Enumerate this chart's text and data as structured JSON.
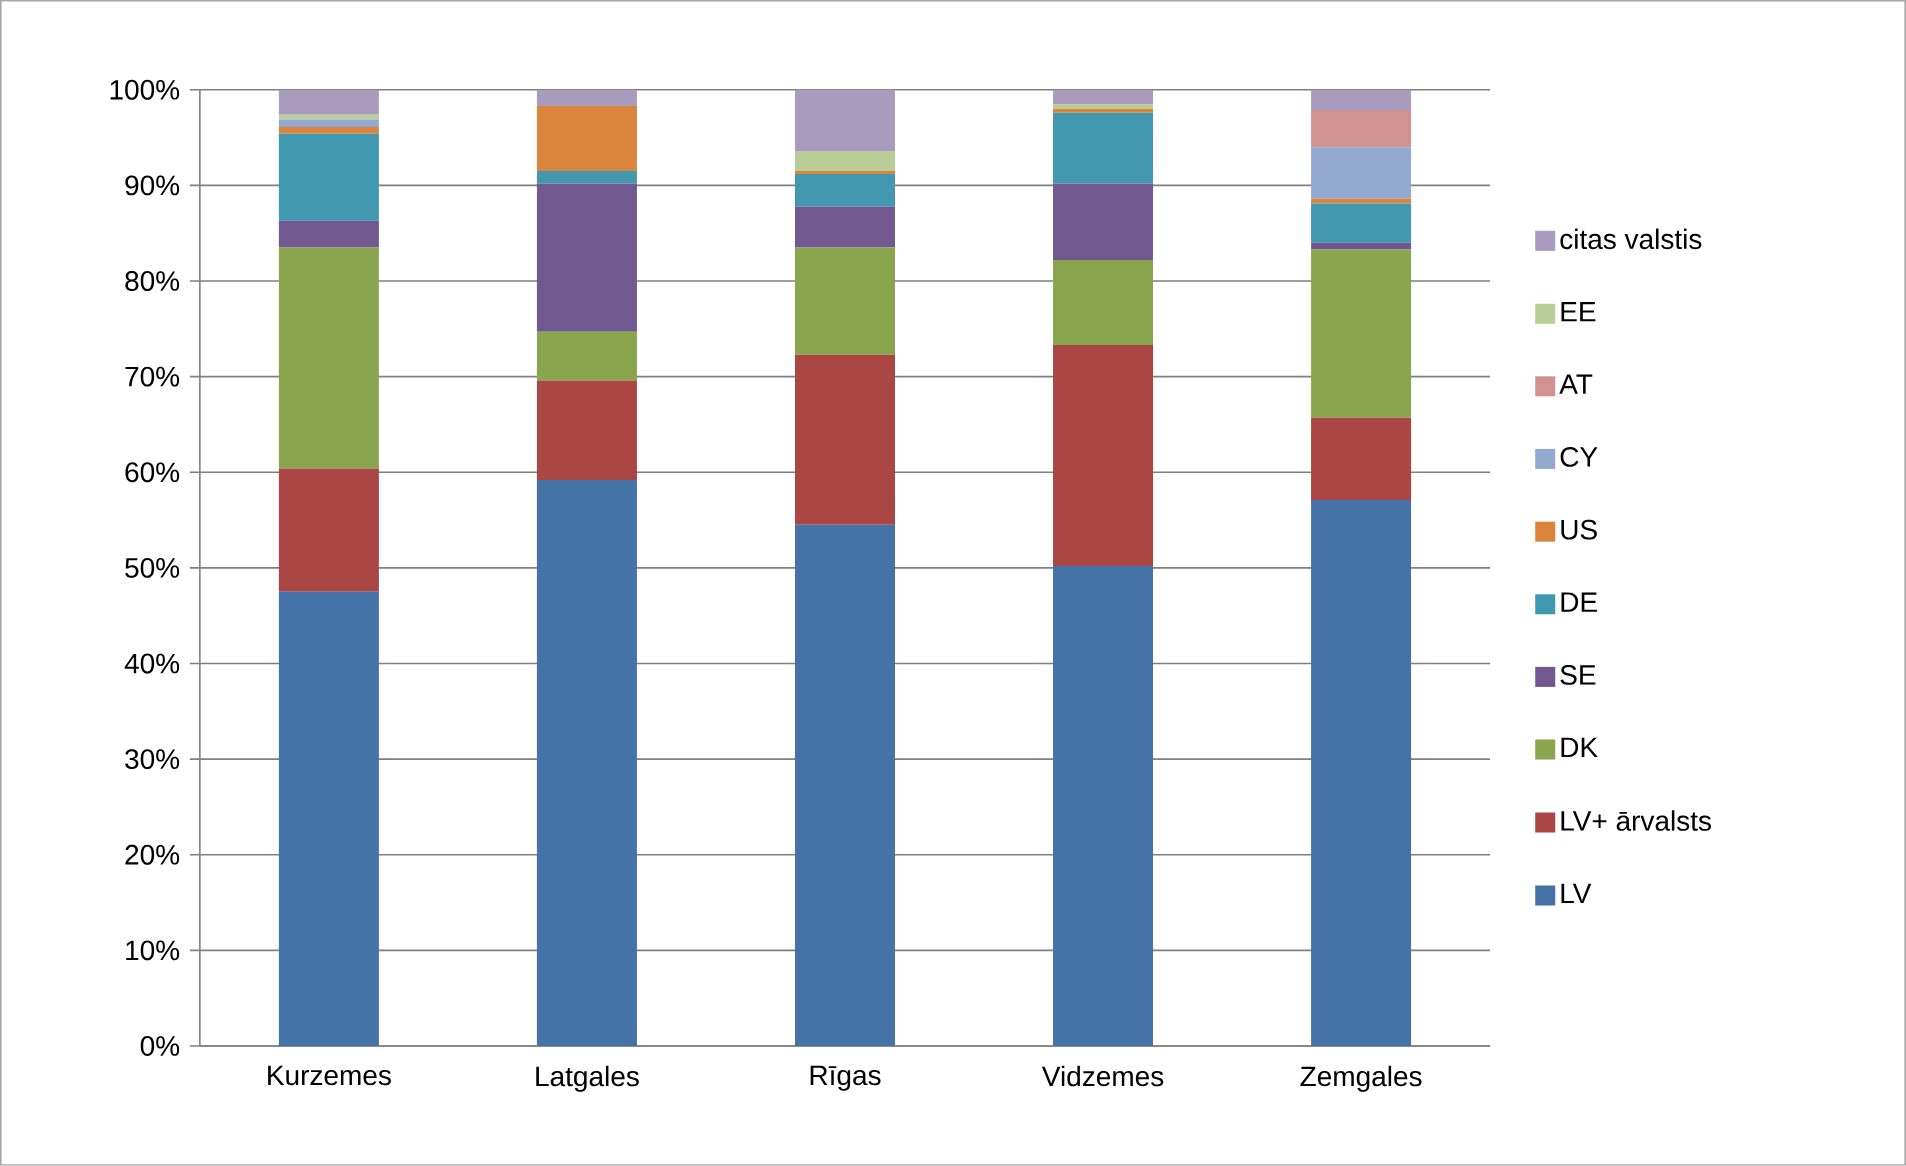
{
  "chart_data": {
    "type": "bar",
    "stacked": true,
    "categories": [
      "Kurzemes",
      "Latgales",
      "Rīgas",
      "Vidzemes",
      "Zemgales"
    ],
    "series": [
      {
        "name": "LV",
        "color": "#4572a7",
        "values": [
          47.5,
          59.2,
          54.5,
          50.2,
          57.1
        ]
      },
      {
        "name": "LV+ ārvalsts",
        "color": "#aa4643",
        "values": [
          12.9,
          10.4,
          17.8,
          23.1,
          8.6
        ]
      },
      {
        "name": "DK",
        "color": "#89a54e",
        "values": [
          23.1,
          5.1,
          11.2,
          8.9,
          17.6
        ]
      },
      {
        "name": "SE",
        "color": "#71588f",
        "values": [
          2.8,
          15.5,
          4.3,
          8.0,
          0.7
        ]
      },
      {
        "name": "DE",
        "color": "#4198af",
        "values": [
          9.1,
          1.3,
          3.4,
          7.4,
          4.1
        ]
      },
      {
        "name": "US",
        "color": "#db843d",
        "values": [
          0.7,
          6.8,
          0.3,
          0.4,
          0.5
        ]
      },
      {
        "name": "CY",
        "color": "#93a9cf",
        "values": [
          0.8,
          0,
          0,
          0,
          5.4
        ]
      },
      {
        "name": "AT",
        "color": "#d19392",
        "values": [
          0,
          0,
          0,
          0,
          3.9
        ]
      },
      {
        "name": "EE",
        "color": "#b9cd96",
        "values": [
          0.5,
          0,
          2.1,
          0.5,
          0
        ]
      },
      {
        "name": "citas valstis",
        "color": "#a99bbd",
        "values": [
          2.6,
          1.7,
          6.5,
          1.5,
          2.1
        ]
      }
    ],
    "ylim": [
      0,
      100
    ],
    "yticks": [
      {
        "value": 0,
        "label": "0%"
      },
      {
        "value": 10,
        "label": "10%"
      },
      {
        "value": 20,
        "label": "20%"
      },
      {
        "value": 30,
        "label": "30%"
      },
      {
        "value": 40,
        "label": "40%"
      },
      {
        "value": 50,
        "label": "50%"
      },
      {
        "value": 60,
        "label": "60%"
      },
      {
        "value": 70,
        "label": "70%"
      },
      {
        "value": 80,
        "label": "80%"
      },
      {
        "value": 90,
        "label": "90%"
      },
      {
        "value": 100,
        "label": "100%"
      }
    ],
    "grid": "y",
    "legend": "right"
  }
}
